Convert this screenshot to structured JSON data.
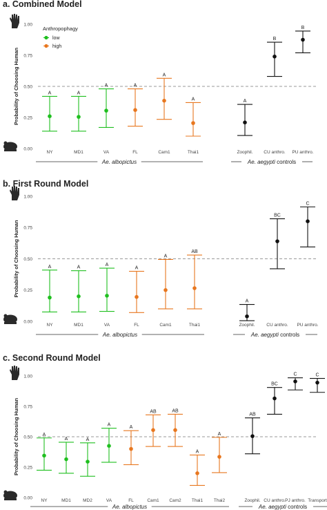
{
  "colors": {
    "low": "#1fbf1f",
    "high": "#e8771f",
    "control": "#111111",
    "reference": "#999999"
  },
  "legend": {
    "title": "Anthropophagy",
    "items": [
      {
        "key": "low",
        "label": "low"
      },
      {
        "key": "high",
        "label": "high"
      }
    ]
  },
  "chart_data": [
    {
      "type": "scatter",
      "title": "a. Combined Model",
      "ylabel": "Probability of Choosing Human",
      "ylim": [
        0,
        1
      ],
      "yticks": [
        "0.00",
        "0.25",
        "0.50",
        "0.75",
        "1.00"
      ],
      "reference_line": 0.5,
      "show_legend": true,
      "points": [
        {
          "x": "NY",
          "y": 0.26,
          "lower": 0.14,
          "upper": 0.42,
          "letter": "A",
          "group": "low"
        },
        {
          "x": "MD1",
          "y": 0.255,
          "lower": 0.14,
          "upper": 0.42,
          "letter": "A",
          "group": "low"
        },
        {
          "x": "VA",
          "y": 0.305,
          "lower": 0.17,
          "upper": 0.48,
          "letter": "A",
          "group": "low"
        },
        {
          "x": "FL",
          "y": 0.31,
          "lower": 0.18,
          "upper": 0.48,
          "letter": "A",
          "group": "high"
        },
        {
          "x": "Cam1",
          "y": 0.385,
          "lower": 0.235,
          "upper": 0.565,
          "letter": "A",
          "group": "high"
        },
        {
          "x": "Thai1",
          "y": 0.205,
          "lower": 0.1,
          "upper": 0.37,
          "letter": "A",
          "group": "high"
        },
        {
          "x": "Zoophil.",
          "y": 0.21,
          "lower": 0.105,
          "upper": 0.355,
          "letter": "A",
          "group": "control"
        },
        {
          "x": "CU anthro.",
          "y": 0.74,
          "lower": 0.58,
          "upper": 0.855,
          "letter": "B",
          "group": "control"
        },
        {
          "x": "PU anthro.",
          "y": 0.875,
          "lower": 0.77,
          "upper": 0.945,
          "letter": "B",
          "group": "control"
        }
      ],
      "groups": [
        {
          "label": "Ae. albopictus",
          "from": "NY",
          "to": "Thai1"
        },
        {
          "label": "Ae. aegypti",
          "suffix": " controls",
          "from": "Zoophil.",
          "to": "PU anthro."
        }
      ]
    },
    {
      "type": "scatter",
      "title": "b. First Round Model",
      "ylabel": "Probability of Choosing Human",
      "ylim": [
        0,
        1
      ],
      "yticks": [
        "0.00",
        "0.25",
        "0.50",
        "0.75",
        "1.00"
      ],
      "reference_line": 0.5,
      "show_legend": false,
      "points": [
        {
          "x": "NY",
          "y": 0.19,
          "lower": 0.075,
          "upper": 0.41,
          "letter": "A",
          "group": "low"
        },
        {
          "x": "MD1",
          "y": 0.2,
          "lower": 0.075,
          "upper": 0.405,
          "letter": "A",
          "group": "low"
        },
        {
          "x": "VA",
          "y": 0.205,
          "lower": 0.08,
          "upper": 0.425,
          "letter": "A",
          "group": "low"
        },
        {
          "x": "FL",
          "y": 0.195,
          "lower": 0.07,
          "upper": 0.4,
          "letter": "A",
          "group": "high"
        },
        {
          "x": "Cam1",
          "y": 0.25,
          "lower": 0.1,
          "upper": 0.495,
          "letter": "A",
          "group": "high"
        },
        {
          "x": "Thai1",
          "y": 0.265,
          "lower": 0.1,
          "upper": 0.53,
          "letter": "AB",
          "group": "high"
        },
        {
          "x": "Zoophil.",
          "y": 0.04,
          "lower": 0.005,
          "upper": 0.135,
          "letter": "A",
          "group": "control"
        },
        {
          "x": "CU anthro.",
          "y": 0.64,
          "lower": 0.42,
          "upper": 0.82,
          "letter": "BC",
          "group": "control"
        },
        {
          "x": "PU anthro.",
          "y": 0.8,
          "lower": 0.595,
          "upper": 0.915,
          "letter": "C",
          "group": "control"
        }
      ],
      "groups": [
        {
          "label": "Ae. albopictus",
          "from": "NY",
          "to": "Thai1"
        },
        {
          "label": "Ae. aegypti",
          "suffix": " controls",
          "from": "Zoophil.",
          "to": "PU anthro."
        }
      ]
    },
    {
      "type": "scatter",
      "title": "c. Second Round Model",
      "ylabel": "Probability of Choosing Human",
      "ylim": [
        0,
        1
      ],
      "yticks": [
        "0.00",
        "0.25",
        "0.50",
        "0.75",
        "1.00"
      ],
      "reference_line": 0.5,
      "show_legend": false,
      "points": [
        {
          "x": "NY",
          "y": 0.345,
          "lower": 0.225,
          "upper": 0.49,
          "letter": "A",
          "group": "low"
        },
        {
          "x": "MD1",
          "y": 0.315,
          "lower": 0.2,
          "upper": 0.455,
          "letter": "A",
          "group": "low"
        },
        {
          "x": "MD2",
          "y": 0.295,
          "lower": 0.175,
          "upper": 0.45,
          "letter": "A",
          "group": "low"
        },
        {
          "x": "VA",
          "y": 0.425,
          "lower": 0.29,
          "upper": 0.57,
          "letter": "A",
          "group": "low"
        },
        {
          "x": "FL",
          "y": 0.4,
          "lower": 0.27,
          "upper": 0.55,
          "letter": "A",
          "group": "high"
        },
        {
          "x": "Cam1",
          "y": 0.555,
          "lower": 0.42,
          "upper": 0.68,
          "letter": "AB",
          "group": "high"
        },
        {
          "x": "Cam2",
          "y": 0.555,
          "lower": 0.42,
          "upper": 0.685,
          "letter": "AB",
          "group": "high"
        },
        {
          "x": "Thai1",
          "y": 0.2,
          "lower": 0.1,
          "upper": 0.35,
          "letter": "A",
          "group": "high"
        },
        {
          "x": "Thai2",
          "y": 0.335,
          "lower": 0.205,
          "upper": 0.495,
          "letter": "A",
          "group": "high"
        },
        {
          "x": "Zoophil.",
          "y": 0.505,
          "lower": 0.36,
          "upper": 0.655,
          "letter": "AB",
          "group": "control"
        },
        {
          "x": "CU anthro.",
          "y": 0.815,
          "lower": 0.685,
          "upper": 0.905,
          "letter": "BC",
          "group": "control"
        },
        {
          "x": "PJ anthro.",
          "y": 0.955,
          "lower": 0.885,
          "upper": 0.985,
          "letter": "C",
          "group": "control"
        },
        {
          "x": "Transport",
          "y": 0.945,
          "lower": 0.865,
          "upper": 0.98,
          "letter": "C",
          "group": "control"
        }
      ],
      "groups": [
        {
          "label": "Ae. albopictus",
          "from": "NY",
          "to": "Thai2"
        },
        {
          "label": "Ae. aegypti",
          "suffix": " controls",
          "from": "Zoophil.",
          "to": "Transport"
        }
      ]
    }
  ]
}
